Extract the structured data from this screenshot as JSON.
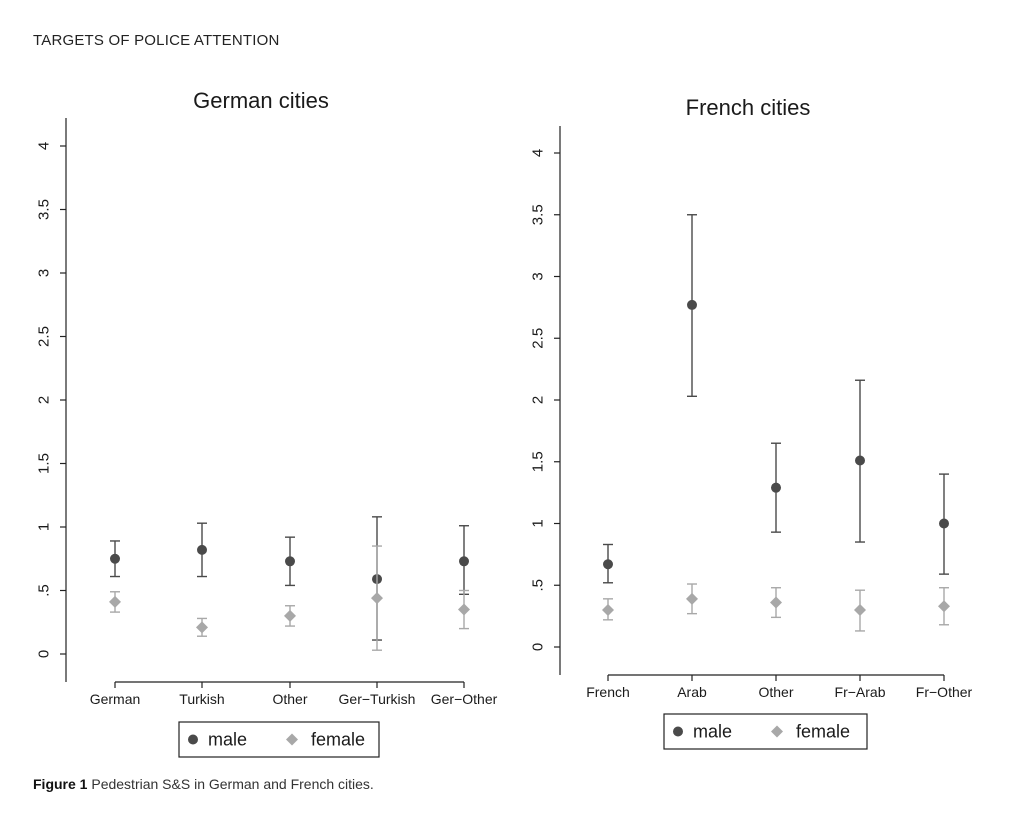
{
  "header": {
    "text": "TARGETS OF POLICE ATTENTION"
  },
  "caption": {
    "label": "Figure 1",
    "text": " Pedestrian S&S in German and French cities."
  },
  "colors": {
    "male": "#4a4a4a",
    "female": "#a8a8a8",
    "axis": "#222222"
  },
  "chart_data": [
    {
      "type": "scatter",
      "title": "German cities",
      "categories": [
        "German",
        "Turkish",
        "Other",
        "Ger−Turkish",
        "Ger−Other"
      ],
      "ylim": [
        0,
        4.2
      ],
      "yticks": [
        0,
        0.5,
        1,
        1.5,
        2,
        2.5,
        3,
        3.5,
        4
      ],
      "ytick_labels": [
        "0",
        ".5",
        "1",
        "1.5",
        "2",
        "2.5",
        "3",
        "3.5",
        "4"
      ],
      "grid": false,
      "legend_position": "bottom",
      "series": [
        {
          "name": "male",
          "marker": "circle",
          "values": [
            0.75,
            0.82,
            0.73,
            0.59,
            0.73
          ],
          "lower": [
            0.61,
            0.61,
            0.54,
            0.11,
            0.47
          ],
          "upper": [
            0.89,
            1.03,
            0.92,
            1.08,
            1.01
          ]
        },
        {
          "name": "female",
          "marker": "diamond",
          "values": [
            0.41,
            0.21,
            0.3,
            0.44,
            0.35
          ],
          "lower": [
            0.33,
            0.14,
            0.22,
            0.03,
            0.2
          ],
          "upper": [
            0.49,
            0.28,
            0.38,
            0.85,
            0.5
          ]
        }
      ]
    },
    {
      "type": "scatter",
      "title": "French cities",
      "categories": [
        "French",
        "Arab",
        "Other",
        "Fr−Arab",
        "Fr−Other"
      ],
      "ylim": [
        -0.2,
        4.2
      ],
      "yticks": [
        0,
        0.5,
        1,
        1.5,
        2,
        2.5,
        3,
        3.5,
        4
      ],
      "ytick_labels": [
        "0",
        ".5",
        "1",
        "1.5",
        "2",
        "2.5",
        "3",
        "3.5",
        "4"
      ],
      "grid": false,
      "legend_position": "bottom",
      "series": [
        {
          "name": "male",
          "marker": "circle",
          "values": [
            0.67,
            2.77,
            1.29,
            1.51,
            1.0
          ],
          "lower": [
            0.52,
            2.03,
            0.93,
            0.85,
            0.59
          ],
          "upper": [
            0.83,
            3.5,
            1.65,
            2.16,
            1.4
          ]
        },
        {
          "name": "female",
          "marker": "diamond",
          "values": [
            0.3,
            0.39,
            0.36,
            0.3,
            0.33
          ],
          "lower": [
            0.22,
            0.27,
            0.24,
            0.13,
            0.18
          ],
          "upper": [
            0.39,
            0.51,
            0.48,
            0.46,
            0.48
          ]
        }
      ]
    }
  ]
}
